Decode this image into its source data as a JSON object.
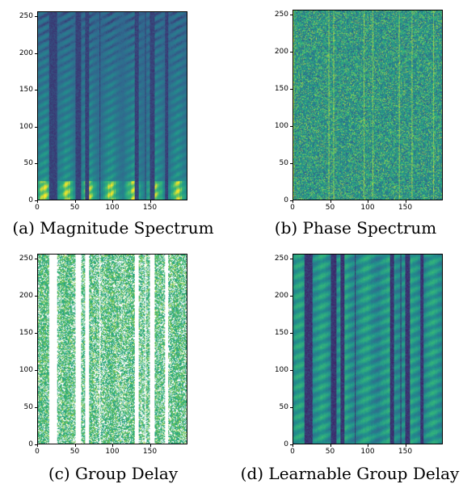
{
  "figure": {
    "panels": [
      {
        "id": "a",
        "caption": "(a) Magnitude Spectrum",
        "style": "magnitude"
      },
      {
        "id": "b",
        "caption": "(b) Phase Spectrum",
        "style": "phase"
      },
      {
        "id": "c",
        "caption": "(c) Group Delay",
        "style": "groupdelay"
      },
      {
        "id": "d",
        "caption": "(d) Learnable Group Delay",
        "style": "learnable"
      }
    ],
    "y_ticks": [
      "0",
      "50",
      "100",
      "150",
      "200",
      "250"
    ],
    "x_ticks": [
      "0",
      "50",
      "100",
      "150"
    ],
    "colormap": [
      "#440154",
      "#31688e",
      "#21918c",
      "#35b779",
      "#fde725"
    ]
  },
  "chart_data": [
    {
      "type": "heatmap",
      "title": "(a) Magnitude Spectrum",
      "xlim": [
        0,
        200
      ],
      "ylim": [
        0,
        257
      ],
      "x_ticks": [
        0,
        50,
        100,
        150
      ],
      "y_ticks": [
        0,
        50,
        100,
        150,
        200,
        250
      ]
    },
    {
      "type": "heatmap",
      "title": "(b) Phase Spectrum",
      "xlim": [
        0,
        200
      ],
      "ylim": [
        0,
        257
      ],
      "x_ticks": [
        0,
        50,
        100,
        150
      ],
      "y_ticks": [
        0,
        50,
        100,
        150,
        200,
        250
      ]
    },
    {
      "type": "heatmap",
      "title": "(c) Group Delay",
      "xlim": [
        0,
        200
      ],
      "ylim": [
        0,
        257
      ],
      "x_ticks": [
        0,
        50,
        100,
        150
      ],
      "y_ticks": [
        0,
        50,
        100,
        150,
        200,
        250
      ]
    },
    {
      "type": "heatmap",
      "title": "(d) Learnable Group Delay",
      "xlim": [
        0,
        200
      ],
      "ylim": [
        0,
        257
      ],
      "x_ticks": [
        0,
        50,
        100,
        150
      ],
      "y_ticks": [
        0,
        50,
        100,
        150,
        200,
        250
      ]
    }
  ]
}
